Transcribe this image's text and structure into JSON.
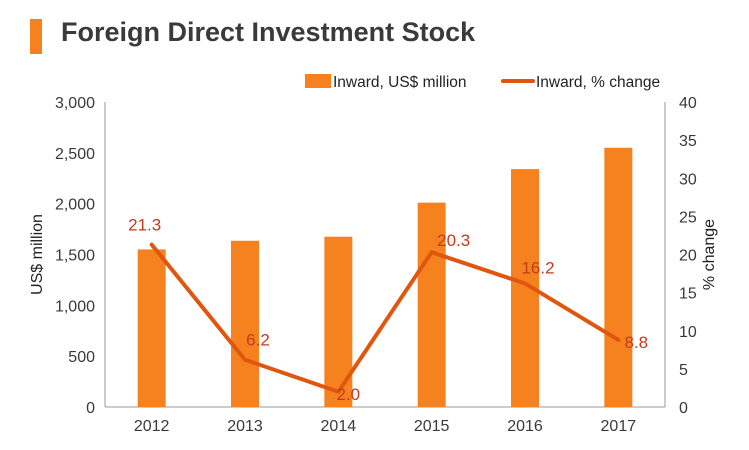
{
  "header": {
    "title": "Foreign Direct Investment Stock"
  },
  "colors": {
    "bar": "#f5821f",
    "line": "#e0560f",
    "label": "#c63a1c",
    "axis": "#9a9a9a",
    "text": "#3a3a3a"
  },
  "chart_data": {
    "type": "bar",
    "title": "Foreign Direct Investment Stock",
    "categories": [
      "2012",
      "2013",
      "2014",
      "2015",
      "2016",
      "2017"
    ],
    "series": [
      {
        "name": "Inward, US$ million",
        "type": "bar",
        "axis": "left",
        "values": [
          1550,
          1635,
          1675,
          2010,
          2340,
          2550
        ]
      },
      {
        "name": "Inward, % change",
        "type": "line",
        "axis": "right",
        "values": [
          21.3,
          6.2,
          2.0,
          20.3,
          16.2,
          8.8
        ],
        "labels": [
          "21.3",
          "6.2",
          "2.0",
          "20.3",
          "16.2",
          "8.8"
        ]
      }
    ],
    "ylabel": "US$ million",
    "y2label": "% change",
    "ylim": [
      0,
      3000
    ],
    "y2lim": [
      0,
      40
    ],
    "yticks": [
      "0",
      "500",
      "1,000",
      "1,500",
      "2,000",
      "2,500",
      "3,000"
    ],
    "y2ticks": [
      "0",
      "5",
      "10",
      "15",
      "20",
      "25",
      "30",
      "35",
      "40"
    ],
    "legend": [
      "Inward, US$ million",
      "Inward, % change"
    ],
    "legend_position": "top-right",
    "grid": false
  }
}
